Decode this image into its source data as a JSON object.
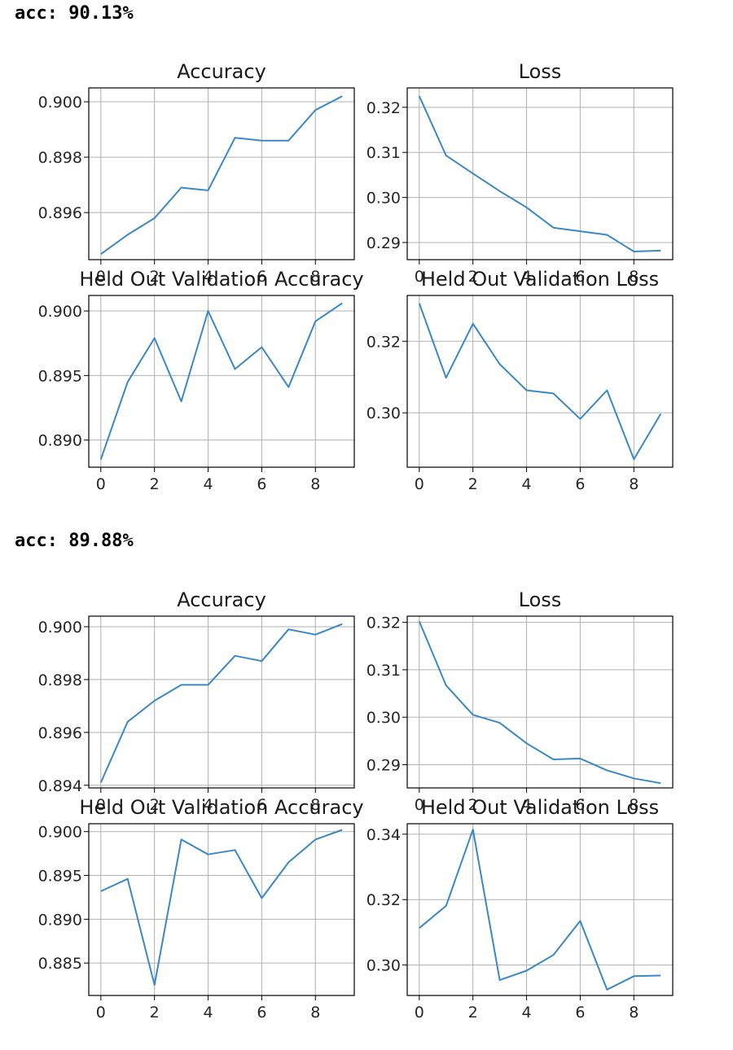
{
  "runs": [
    {
      "acc_text": "acc: 90.13%",
      "charts": [
        {
          "type": "line",
          "title": "Accuracy",
          "x": [
            0,
            1,
            2,
            3,
            4,
            5,
            6,
            7,
            8,
            9
          ],
          "y": [
            0.8945,
            0.8952,
            0.8958,
            0.8969,
            0.8968,
            0.8987,
            0.8986,
            0.8986,
            0.8997,
            0.9002
          ],
          "xticks": [
            0,
            2,
            4,
            6,
            8
          ],
          "xtick_labels": [
            "0",
            "2",
            "4",
            "6",
            "8"
          ],
          "yticks": [
            0.896,
            0.898,
            0.9
          ],
          "ytick_labels": [
            "0.896",
            "0.898",
            "0.900"
          ],
          "xlim": [
            -0.45,
            9.45
          ],
          "ylim": [
            0.8943,
            0.9005
          ],
          "grid": true
        },
        {
          "type": "line",
          "title": "Loss",
          "x": [
            0,
            1,
            2,
            3,
            4,
            5,
            6,
            7,
            8,
            9
          ],
          "y": [
            0.3225,
            0.3093,
            0.3053,
            0.3014,
            0.2978,
            0.2933,
            0.2925,
            0.2917,
            0.288,
            0.2882
          ],
          "xticks": [
            0,
            2,
            4,
            6,
            8
          ],
          "xtick_labels": [
            "0",
            "2",
            "4",
            "6",
            "8"
          ],
          "yticks": [
            0.29,
            0.3,
            0.31,
            0.32
          ],
          "ytick_labels": [
            "0.29",
            "0.30",
            "0.31",
            "0.32"
          ],
          "xlim": [
            -0.45,
            9.45
          ],
          "ylim": [
            0.2862,
            0.3243
          ],
          "grid": true
        },
        {
          "type": "line",
          "title": "Held Out Validation Accuracy",
          "x": [
            0,
            1,
            2,
            3,
            4,
            5,
            6,
            7,
            8,
            9
          ],
          "y": [
            0.8885,
            0.8945,
            0.8979,
            0.893,
            0.9,
            0.8955,
            0.8972,
            0.8941,
            0.8992,
            0.9006
          ],
          "xticks": [
            0,
            2,
            4,
            6,
            8
          ],
          "xtick_labels": [
            "0",
            "2",
            "4",
            "6",
            "8"
          ],
          "yticks": [
            0.89,
            0.895,
            0.9
          ],
          "ytick_labels": [
            "0.890",
            "0.895",
            "0.900"
          ],
          "xlim": [
            -0.45,
            9.45
          ],
          "ylim": [
            0.8879,
            0.9012
          ],
          "grid": true
        },
        {
          "type": "line",
          "title": "Held Out Validation Loss",
          "x": [
            0,
            1,
            2,
            3,
            4,
            5,
            6,
            7,
            8,
            9
          ],
          "y": [
            0.3306,
            0.3098,
            0.3249,
            0.3136,
            0.3063,
            0.3054,
            0.2983,
            0.3063,
            0.287,
            0.2997
          ],
          "xticks": [
            0,
            2,
            4,
            6,
            8
          ],
          "xtick_labels": [
            "0",
            "2",
            "4",
            "6",
            "8"
          ],
          "yticks": [
            0.3,
            0.32
          ],
          "ytick_labels": [
            "0.30",
            "0.32"
          ],
          "xlim": [
            -0.45,
            9.45
          ],
          "ylim": [
            0.2848,
            0.3328
          ],
          "grid": true
        }
      ]
    },
    {
      "acc_text": "acc: 89.88%",
      "charts": [
        {
          "type": "line",
          "title": "Accuracy",
          "x": [
            0,
            1,
            2,
            3,
            4,
            5,
            6,
            7,
            8,
            9
          ],
          "y": [
            0.8941,
            0.8964,
            0.8972,
            0.8978,
            0.8978,
            0.8989,
            0.8987,
            0.8999,
            0.8997,
            0.9001
          ],
          "xticks": [
            0,
            2,
            4,
            6,
            8
          ],
          "xtick_labels": [
            "0",
            "2",
            "4",
            "6",
            "8"
          ],
          "yticks": [
            0.894,
            0.896,
            0.898,
            0.9
          ],
          "ytick_labels": [
            "0.894",
            "0.896",
            "0.898",
            "0.900"
          ],
          "xlim": [
            -0.45,
            9.45
          ],
          "ylim": [
            0.8939,
            0.9004
          ],
          "grid": true
        },
        {
          "type": "line",
          "title": "Loss",
          "x": [
            0,
            1,
            2,
            3,
            4,
            5,
            6,
            7,
            8,
            9
          ],
          "y": [
            0.3202,
            0.3067,
            0.3005,
            0.2988,
            0.2945,
            0.2911,
            0.2913,
            0.2888,
            0.2871,
            0.2861
          ],
          "xticks": [
            0,
            2,
            4,
            6,
            8
          ],
          "xtick_labels": [
            "0",
            "2",
            "4",
            "6",
            "8"
          ],
          "yticks": [
            0.29,
            0.3,
            0.31,
            0.32
          ],
          "ytick_labels": [
            "0.29",
            "0.30",
            "0.31",
            "0.32"
          ],
          "xlim": [
            -0.45,
            9.45
          ],
          "ylim": [
            0.2851,
            0.3213
          ],
          "grid": true
        },
        {
          "type": "line",
          "title": "Held Out Validation Accuracy",
          "x": [
            0,
            1,
            2,
            3,
            4,
            5,
            6,
            7,
            8,
            9
          ],
          "y": [
            0.8932,
            0.8946,
            0.8825,
            0.8991,
            0.8974,
            0.8979,
            0.8924,
            0.8965,
            0.8991,
            0.9002
          ],
          "xticks": [
            0,
            2,
            4,
            6,
            8
          ],
          "xtick_labels": [
            "0",
            "2",
            "4",
            "6",
            "8"
          ],
          "yticks": [
            0.885,
            0.89,
            0.895,
            0.9
          ],
          "ytick_labels": [
            "0.885",
            "0.890",
            "0.895",
            "0.900"
          ],
          "xlim": [
            -0.45,
            9.45
          ],
          "ylim": [
            0.8813,
            0.9009
          ],
          "grid": true
        },
        {
          "type": "line",
          "title": "Held Out Validation Loss",
          "x": [
            0,
            1,
            2,
            3,
            4,
            5,
            6,
            7,
            8,
            9
          ],
          "y": [
            0.3113,
            0.3181,
            0.3414,
            0.2954,
            0.2983,
            0.3031,
            0.3135,
            0.2925,
            0.2966,
            0.2968
          ],
          "xticks": [
            0,
            2,
            4,
            6,
            8
          ],
          "xtick_labels": [
            "0",
            "2",
            "4",
            "6",
            "8"
          ],
          "yticks": [
            0.3,
            0.32,
            0.34
          ],
          "ytick_labels": [
            "0.30",
            "0.32",
            "0.34"
          ],
          "xlim": [
            -0.45,
            9.45
          ],
          "ylim": [
            0.2907,
            0.3432
          ],
          "grid": true
        }
      ]
    }
  ],
  "colors": {
    "line": "#3a88c4",
    "grid": "#b0b0b0",
    "axis": "#000000",
    "text": "#262626"
  }
}
